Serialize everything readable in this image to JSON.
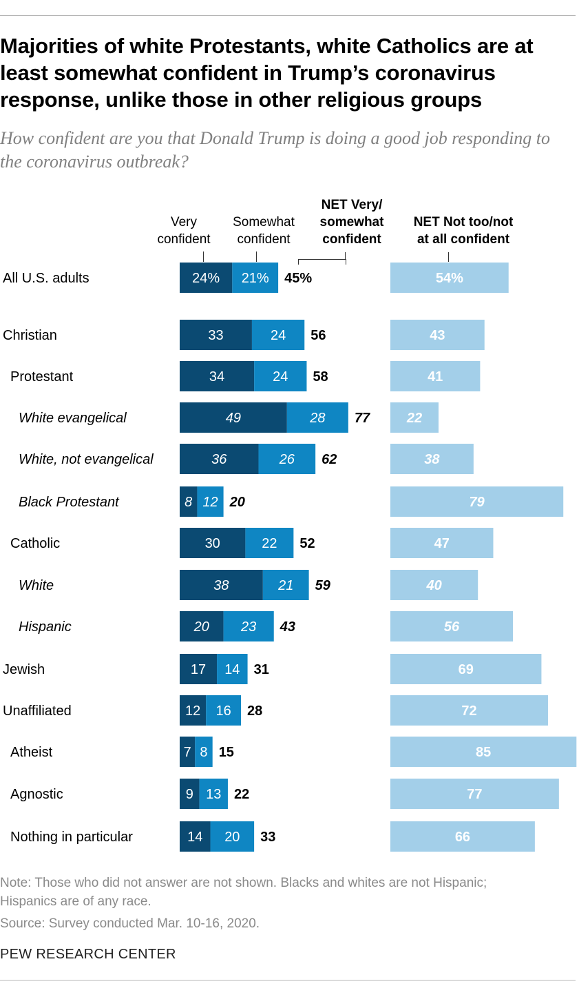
{
  "title": "Majorities of white Protestants, white Catholics are at least somewhat confident in Trump’s coronavirus response, unlike those in other religious groups",
  "subtitle": "How confident are you that Donald Trump is doing a good job responding to the coronavirus outbreak?",
  "headers": {
    "very_line1": "Very",
    "very_line2": "confident",
    "somewhat_line1": "Somewhat",
    "somewhat_line2": "confident",
    "net_conf_line1": "NET Very/",
    "net_conf_line2": "somewhat",
    "net_conf_line3": "confident",
    "net_not_line1": "NET Not too/not",
    "net_not_line2": "at all confident"
  },
  "note": "Note: Those who did not answer are not shown. Blacks and whites are not Hispanic; Hispanics are of any race.",
  "source": "Source: Survey conducted Mar. 10-16, 2020.",
  "brand": "PEW RESEARCH CENTER",
  "colors": {
    "very": "#0b4a72",
    "somewhat": "#0f86c3",
    "not_confident": "#a3cfe9"
  },
  "chart_data": {
    "type": "bar",
    "orientation": "horizontal",
    "stacked": true,
    "title": "Majorities of white Protestants, white Catholics are at least somewhat confident in Trump’s coronavirus response, unlike those in other religious groups",
    "series": [
      {
        "name": "Very confident",
        "values": [
          24,
          33,
          34,
          49,
          36,
          8,
          30,
          38,
          20,
          17,
          12,
          7,
          9,
          14
        ]
      },
      {
        "name": "Somewhat confident",
        "values": [
          21,
          24,
          24,
          28,
          26,
          12,
          22,
          21,
          23,
          14,
          16,
          8,
          13,
          20
        ]
      },
      {
        "name": "NET Very/somewhat confident",
        "values": [
          45,
          56,
          58,
          77,
          62,
          20,
          52,
          59,
          43,
          31,
          28,
          15,
          22,
          33
        ]
      },
      {
        "name": "NET Not too/not at all confident",
        "values": [
          54,
          43,
          41,
          22,
          38,
          79,
          47,
          40,
          56,
          69,
          72,
          85,
          77,
          66
        ]
      }
    ],
    "categories": [
      {
        "label": "All U.S. adults",
        "indent": 0,
        "italic": false,
        "percent": true
      },
      {
        "label": "Christian",
        "indent": 0,
        "italic": false,
        "percent": false
      },
      {
        "label": "Protestant",
        "indent": 1,
        "italic": false,
        "percent": false
      },
      {
        "label": "White evangelical",
        "indent": 2,
        "italic": true,
        "percent": false
      },
      {
        "label": "White, not evangelical",
        "indent": 2,
        "italic": true,
        "percent": false
      },
      {
        "label": "Black Protestant",
        "indent": 2,
        "italic": true,
        "percent": false
      },
      {
        "label": "Catholic",
        "indent": 1,
        "italic": false,
        "percent": false
      },
      {
        "label": "White",
        "indent": 2,
        "italic": true,
        "percent": false
      },
      {
        "label": "Hispanic",
        "indent": 2,
        "italic": true,
        "percent": false
      },
      {
        "label": "Jewish",
        "indent": 0,
        "italic": false,
        "percent": false
      },
      {
        "label": "Unaffiliated",
        "indent": 0,
        "italic": false,
        "percent": false
      },
      {
        "label": "Atheist",
        "indent": 1,
        "italic": false,
        "percent": false
      },
      {
        "label": "Agnostic",
        "indent": 1,
        "italic": false,
        "percent": false
      },
      {
        "label": "Nothing in particular",
        "indent": 1,
        "italic": false,
        "percent": false
      }
    ]
  }
}
